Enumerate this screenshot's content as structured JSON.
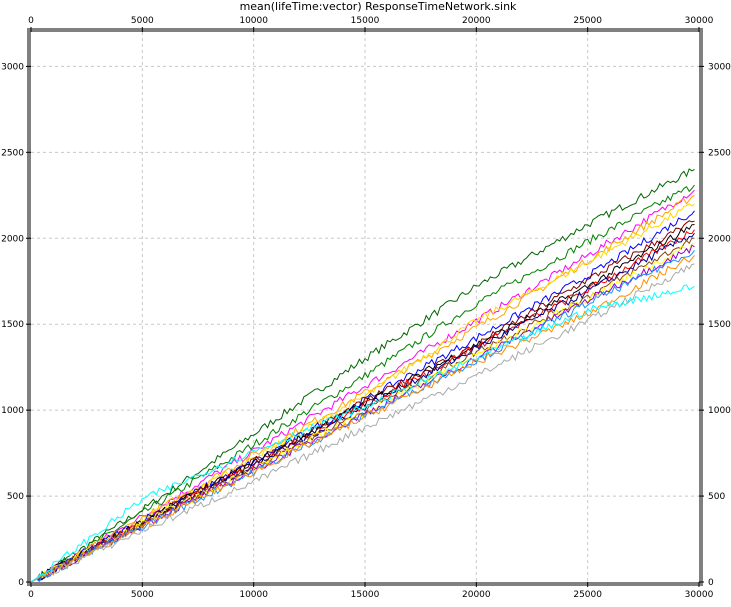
{
  "chart_data": {
    "type": "line",
    "title": "mean(lifeTime:vector) ResponseTimeNetwork.sink",
    "xlabel": "",
    "ylabel": "",
    "xlim": [
      0,
      30000
    ],
    "ylim": [
      0,
      3200
    ],
    "x_ticks": [
      0,
      5000,
      10000,
      15000,
      20000,
      25000,
      30000
    ],
    "y_ticks": [
      0,
      500,
      1000,
      1500,
      2000,
      2500,
      3000
    ],
    "grid": true,
    "axes_mirrored": "top and right",
    "series": [
      {
        "color": "#006400",
        "values": [
          [
            0,
            0
          ],
          [
            5000,
            420
          ],
          [
            10000,
            860
          ],
          [
            15000,
            1300
          ],
          [
            20000,
            1720
          ],
          [
            25000,
            2080
          ],
          [
            29800,
            2400
          ]
        ]
      },
      {
        "color": "#008000",
        "values": [
          [
            0,
            0
          ],
          [
            5000,
            400
          ],
          [
            10000,
            800
          ],
          [
            15000,
            1200
          ],
          [
            20000,
            1620
          ],
          [
            25000,
            1980
          ],
          [
            29800,
            2310
          ]
        ]
      },
      {
        "color": "#ff00ff",
        "values": [
          [
            0,
            0
          ],
          [
            5000,
            380
          ],
          [
            10000,
            760
          ],
          [
            15000,
            1140
          ],
          [
            20000,
            1520
          ],
          [
            25000,
            1900
          ],
          [
            29800,
            2280
          ]
        ]
      },
      {
        "color": "#ffa500",
        "values": [
          [
            0,
            0
          ],
          [
            5000,
            370
          ],
          [
            10000,
            740
          ],
          [
            15000,
            1100
          ],
          [
            20000,
            1480
          ],
          [
            25000,
            1870
          ],
          [
            29800,
            2250
          ]
        ]
      },
      {
        "color": "#ffd700",
        "values": [
          [
            0,
            0
          ],
          [
            5000,
            360
          ],
          [
            10000,
            720
          ],
          [
            15000,
            1080
          ],
          [
            20000,
            1520
          ],
          [
            25000,
            1860
          ],
          [
            29800,
            2200
          ]
        ]
      },
      {
        "color": "#0000ff",
        "values": [
          [
            0,
            0
          ],
          [
            5000,
            360
          ],
          [
            10000,
            700
          ],
          [
            15000,
            1060
          ],
          [
            20000,
            1420
          ],
          [
            25000,
            1780
          ],
          [
            29800,
            2160
          ]
        ]
      },
      {
        "color": "#800000",
        "values": [
          [
            0,
            0
          ],
          [
            5000,
            350
          ],
          [
            10000,
            700
          ],
          [
            15000,
            1050
          ],
          [
            20000,
            1380
          ],
          [
            25000,
            1760
          ],
          [
            29800,
            2100
          ]
        ]
      },
      {
        "color": "#000000",
        "values": [
          [
            0,
            0
          ],
          [
            5000,
            350
          ],
          [
            10000,
            690
          ],
          [
            15000,
            1040
          ],
          [
            20000,
            1380
          ],
          [
            25000,
            1720
          ],
          [
            29800,
            2080
          ]
        ]
      },
      {
        "color": "#ff0000",
        "values": [
          [
            0,
            0
          ],
          [
            5000,
            340
          ],
          [
            10000,
            680
          ],
          [
            15000,
            1030
          ],
          [
            20000,
            1370
          ],
          [
            25000,
            1700
          ],
          [
            29800,
            2050
          ]
        ]
      },
      {
        "color": "#00008b",
        "values": [
          [
            0,
            0
          ],
          [
            5000,
            340
          ],
          [
            10000,
            680
          ],
          [
            15000,
            1020
          ],
          [
            20000,
            1360
          ],
          [
            25000,
            1690
          ],
          [
            29800,
            2030
          ]
        ]
      },
      {
        "color": "#8b4513",
        "values": [
          [
            0,
            0
          ],
          [
            5000,
            330
          ],
          [
            10000,
            670
          ],
          [
            15000,
            1000
          ],
          [
            20000,
            1340
          ],
          [
            25000,
            1660
          ],
          [
            29800,
            2000
          ]
        ]
      },
      {
        "color": "#ffff00",
        "values": [
          [
            0,
            0
          ],
          [
            5000,
            340
          ],
          [
            10000,
            660
          ],
          [
            15000,
            990
          ],
          [
            20000,
            1320
          ],
          [
            25000,
            1650
          ],
          [
            29800,
            1970
          ]
        ]
      },
      {
        "color": "#9400d3",
        "values": [
          [
            0,
            0
          ],
          [
            5000,
            330
          ],
          [
            10000,
            650
          ],
          [
            15000,
            980
          ],
          [
            20000,
            1300
          ],
          [
            25000,
            1640
          ],
          [
            29800,
            1950
          ]
        ]
      },
      {
        "color": "#1e90ff",
        "values": [
          [
            0,
            0
          ],
          [
            5000,
            320
          ],
          [
            10000,
            640
          ],
          [
            15000,
            970
          ],
          [
            20000,
            1290
          ],
          [
            25000,
            1620
          ],
          [
            29800,
            1930
          ]
        ]
      },
      {
        "color": "#ff8c00",
        "values": [
          [
            0,
            0
          ],
          [
            5000,
            320
          ],
          [
            10000,
            640
          ],
          [
            15000,
            960
          ],
          [
            20000,
            1280
          ],
          [
            25000,
            1560
          ],
          [
            29800,
            1900
          ]
        ]
      },
      {
        "color": "#a9a9a9",
        "values": [
          [
            0,
            0
          ],
          [
            5000,
            300
          ],
          [
            10000,
            580
          ],
          [
            15000,
            900
          ],
          [
            20000,
            1200
          ],
          [
            25000,
            1520
          ],
          [
            29800,
            1850
          ]
        ]
      },
      {
        "color": "#00ffff",
        "values": [
          [
            0,
            0
          ],
          [
            5000,
            480
          ],
          [
            10000,
            760
          ],
          [
            15000,
            1020
          ],
          [
            20000,
            1300
          ],
          [
            25000,
            1580
          ],
          [
            29800,
            1720
          ]
        ]
      }
    ]
  }
}
